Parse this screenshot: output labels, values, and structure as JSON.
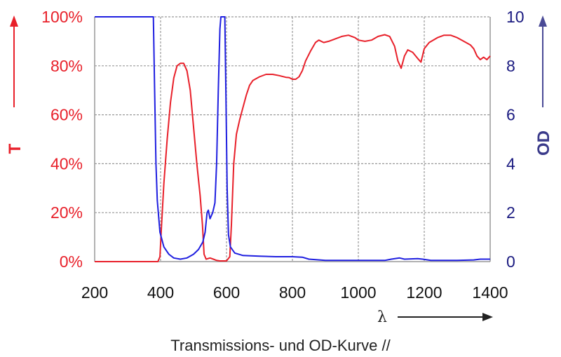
{
  "chart_data": {
    "type": "line",
    "title": "",
    "caption": "Transmissions- und OD-Kurve //",
    "xlabel": "λ",
    "ylabel_left": "T",
    "ylabel_right": "OD",
    "xlim": [
      200,
      1400
    ],
    "ylim_left": [
      0,
      100
    ],
    "ylim_right": [
      0,
      10
    ],
    "x_ticks": [
      "200",
      "400",
      "600",
      "800",
      "1000",
      "1200",
      "1400"
    ],
    "y_ticks_left": [
      "0%",
      "20%",
      "40%",
      "60%",
      "80%",
      "100%"
    ],
    "y_ticks_right": [
      "0",
      "2",
      "4",
      "6",
      "8",
      "10"
    ],
    "grid": true,
    "grid_style": "dashed",
    "colors": {
      "T": "#e8202a",
      "OD": "#1f1fe0",
      "left_axis_text": "#e8202a",
      "right_axis_text": "#1a1a80"
    },
    "series": [
      {
        "name": "T",
        "axis": "left",
        "unit": "%",
        "color": "#e8202a",
        "points": [
          [
            200,
            0
          ],
          [
            380,
            0
          ],
          [
            392,
            0
          ],
          [
            398,
            2
          ],
          [
            403,
            15
          ],
          [
            410,
            32
          ],
          [
            420,
            50
          ],
          [
            430,
            65
          ],
          [
            440,
            75
          ],
          [
            450,
            80
          ],
          [
            460,
            81
          ],
          [
            470,
            81
          ],
          [
            480,
            78
          ],
          [
            490,
            70
          ],
          [
            500,
            55
          ],
          [
            510,
            40
          ],
          [
            520,
            27
          ],
          [
            527,
            15
          ],
          [
            532,
            3
          ],
          [
            538,
            1
          ],
          [
            550,
            1.5
          ],
          [
            560,
            1
          ],
          [
            570,
            0.5
          ],
          [
            580,
            0.3
          ],
          [
            600,
            0.3
          ],
          [
            610,
            2
          ],
          [
            615,
            15
          ],
          [
            622,
            40
          ],
          [
            630,
            52
          ],
          [
            640,
            58
          ],
          [
            650,
            63
          ],
          [
            660,
            68
          ],
          [
            670,
            72
          ],
          [
            680,
            74
          ],
          [
            700,
            75.5
          ],
          [
            720,
            76.5
          ],
          [
            740,
            76.5
          ],
          [
            760,
            76
          ],
          [
            780,
            75.3
          ],
          [
            790,
            75.2
          ],
          [
            800,
            74.5
          ],
          [
            810,
            74.5
          ],
          [
            820,
            75.5
          ],
          [
            830,
            78
          ],
          [
            840,
            82
          ],
          [
            855,
            86
          ],
          [
            870,
            89.5
          ],
          [
            880,
            90.5
          ],
          [
            895,
            89.5
          ],
          [
            910,
            90
          ],
          [
            930,
            91
          ],
          [
            950,
            92
          ],
          [
            970,
            92.5
          ],
          [
            990,
            91.5
          ],
          [
            1000,
            90.5
          ],
          [
            1020,
            90
          ],
          [
            1040,
            90.5
          ],
          [
            1060,
            92
          ],
          [
            1080,
            92.7
          ],
          [
            1095,
            92
          ],
          [
            1110,
            88
          ],
          [
            1120,
            82
          ],
          [
            1130,
            79
          ],
          [
            1140,
            84
          ],
          [
            1150,
            86.5
          ],
          [
            1165,
            85.5
          ],
          [
            1180,
            83
          ],
          [
            1190,
            81.5
          ],
          [
            1200,
            87
          ],
          [
            1215,
            89.5
          ],
          [
            1240,
            91.5
          ],
          [
            1260,
            92.5
          ],
          [
            1280,
            92.5
          ],
          [
            1300,
            91.5
          ],
          [
            1320,
            90
          ],
          [
            1340,
            88.5
          ],
          [
            1350,
            87
          ],
          [
            1360,
            84
          ],
          [
            1370,
            82.5
          ],
          [
            1380,
            83.5
          ],
          [
            1390,
            82.5
          ],
          [
            1400,
            84
          ]
        ]
      },
      {
        "name": "OD",
        "axis": "right",
        "unit": "",
        "color": "#1f1fe0",
        "points": [
          [
            200,
            10
          ],
          [
            375,
            10
          ],
          [
            378,
            10
          ],
          [
            382,
            7
          ],
          [
            386,
            4
          ],
          [
            390,
            2.5
          ],
          [
            398,
            1.2
          ],
          [
            410,
            0.6
          ],
          [
            425,
            0.3
          ],
          [
            440,
            0.15
          ],
          [
            460,
            0.1
          ],
          [
            480,
            0.15
          ],
          [
            500,
            0.3
          ],
          [
            515,
            0.5
          ],
          [
            528,
            0.8
          ],
          [
            535,
            1.2
          ],
          [
            541,
            2.0
          ],
          [
            545,
            2.1
          ],
          [
            550,
            1.75
          ],
          [
            558,
            2.0
          ],
          [
            565,
            2.4
          ],
          [
            570,
            4
          ],
          [
            575,
            7
          ],
          [
            580,
            9.5
          ],
          [
            583,
            10
          ],
          [
            595,
            10
          ],
          [
            598,
            7
          ],
          [
            602,
            3
          ],
          [
            606,
            1.1
          ],
          [
            612,
            0.6
          ],
          [
            625,
            0.35
          ],
          [
            650,
            0.25
          ],
          [
            700,
            0.22
          ],
          [
            750,
            0.2
          ],
          [
            800,
            0.2
          ],
          [
            830,
            0.18
          ],
          [
            850,
            0.1
          ],
          [
            900,
            0.05
          ],
          [
            1000,
            0.05
          ],
          [
            1080,
            0.05
          ],
          [
            1100,
            0.1
          ],
          [
            1125,
            0.15
          ],
          [
            1140,
            0.1
          ],
          [
            1180,
            0.12
          ],
          [
            1195,
            0.1
          ],
          [
            1220,
            0.05
          ],
          [
            1300,
            0.05
          ],
          [
            1350,
            0.07
          ],
          [
            1370,
            0.1
          ],
          [
            1400,
            0.1
          ]
        ]
      }
    ]
  }
}
